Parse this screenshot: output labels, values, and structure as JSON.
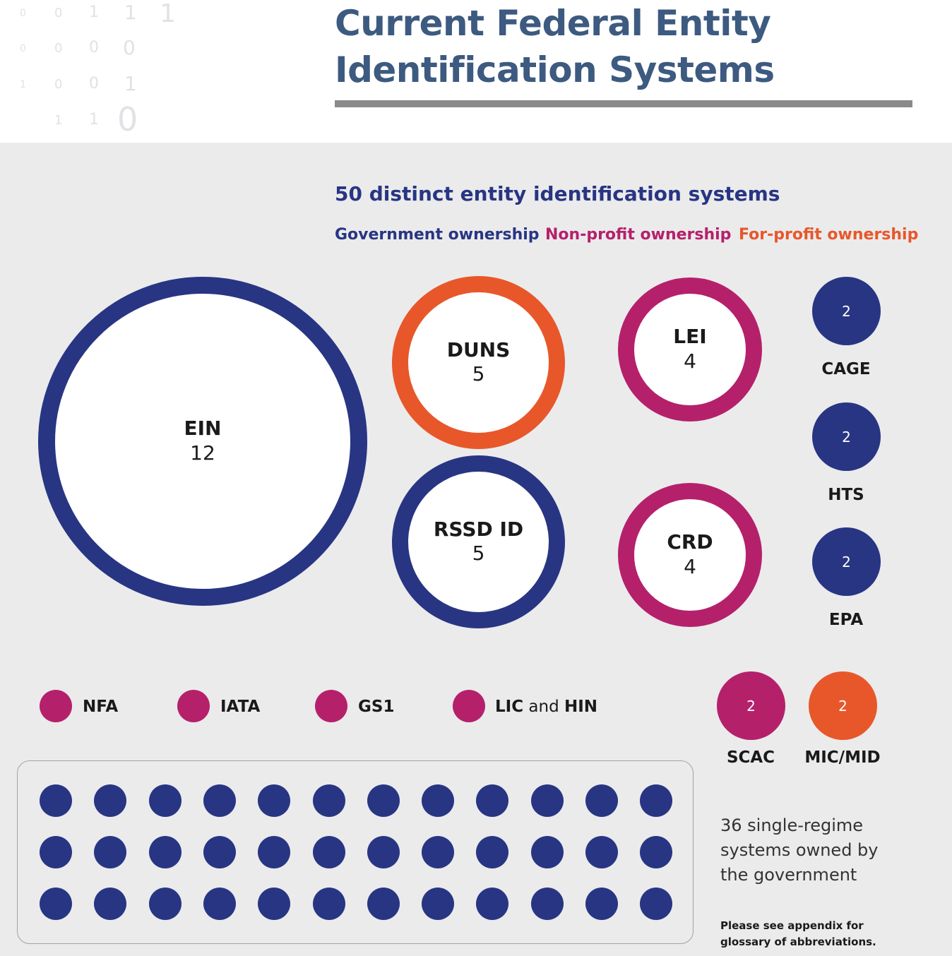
{
  "header": {
    "title_line1": "Current Federal Entity",
    "title_line2": "Identification Systems",
    "binary": [
      {
        "text": "0"
      },
      {
        "text": "0"
      },
      {
        "text": "1"
      },
      {
        "text": "1"
      },
      {
        "text": "1"
      },
      {
        "text": "0"
      },
      {
        "text": "0"
      },
      {
        "text": "0"
      },
      {
        "text": "0"
      },
      {
        "text": "1"
      },
      {
        "text": "0"
      },
      {
        "text": "0"
      },
      {
        "text": "1"
      },
      {
        "text": "1"
      },
      {
        "text": "1"
      },
      {
        "text": "0"
      }
    ]
  },
  "summary": {
    "total_label": "50 distinct entity identification systems"
  },
  "legend": {
    "government": {
      "label": "Government ownership",
      "color": "#283583"
    },
    "nonprofit": {
      "label": "Non-profit ownership",
      "color": "#b5206b"
    },
    "forprofit": {
      "label": "For-profit ownership",
      "color": "#e8572a"
    }
  },
  "rings": [
    {
      "abbr": "EIN",
      "count": "12",
      "ownership": "government",
      "color": "#283583"
    },
    {
      "abbr": "DUNS",
      "count": "5",
      "ownership": "forprofit",
      "color": "#e8572a"
    },
    {
      "abbr": "RSSD ID",
      "count": "5",
      "ownership": "government",
      "color": "#283583"
    },
    {
      "abbr": "LEI",
      "count": "4",
      "ownership": "nonprofit",
      "color": "#b5206b"
    },
    {
      "abbr": "CRD",
      "count": "4",
      "ownership": "nonprofit",
      "color": "#b5206b"
    }
  ],
  "small_systems": [
    {
      "abbr": "CAGE",
      "count": "2",
      "ownership": "government",
      "color": "#283583"
    },
    {
      "abbr": "HTS",
      "count": "2",
      "ownership": "government",
      "color": "#283583"
    },
    {
      "abbr": "EPA",
      "count": "2",
      "ownership": "government",
      "color": "#283583"
    },
    {
      "abbr": "SCAC",
      "count": "2",
      "ownership": "nonprofit",
      "color": "#b5206b"
    },
    {
      "abbr": "MIC/MID",
      "count": "2",
      "ownership": "forprofit",
      "color": "#e8572a"
    }
  ],
  "nonprofit_singles": [
    {
      "label": "NFA"
    },
    {
      "label": "IATA"
    },
    {
      "label": "GS1"
    },
    {
      "label_a": "LIC",
      "connector": "and",
      "label_b": "HIN"
    }
  ],
  "single_regime": {
    "count": 36,
    "rows": 3,
    "columns": 12,
    "color": "#283583",
    "caption": "36 single-regime systems owned by the government"
  },
  "footnote": "Please see appendix for glossary of abbreviations."
}
